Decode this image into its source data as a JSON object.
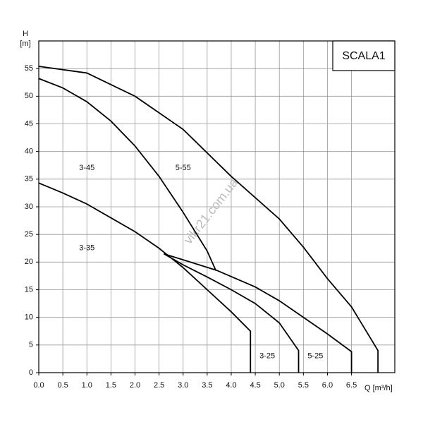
{
  "chart_data": {
    "type": "line",
    "title": "SCALA1",
    "y_label_top": "H",
    "y_label_unit": "[m]",
    "x_label": "Q [m³/h]",
    "watermark": "vikr21.com.ua",
    "xlim": [
      0,
      7.4
    ],
    "ylim": [
      0,
      60
    ],
    "xticks": [
      {
        "value": 0,
        "label": "0.0"
      },
      0.5,
      {
        "value": 1,
        "label": "1.0"
      },
      1.5,
      {
        "value": 2,
        "label": "2.0"
      },
      2.5,
      {
        "value": 3,
        "label": "3.0"
      },
      3.5,
      {
        "value": 4,
        "label": "4.0"
      },
      4.5,
      {
        "value": 5,
        "label": "5.0"
      },
      5.5,
      {
        "value": 6,
        "label": "6.0"
      },
      6.5
    ],
    "yticks": [
      0,
      5,
      10,
      15,
      20,
      25,
      30,
      35,
      40,
      45,
      50,
      55
    ],
    "grid": true,
    "series": [
      {
        "name": "5-55",
        "color": "#000000",
        "x": [
          0,
          1,
          2,
          3,
          4,
          5,
          5.5,
          6,
          6.5,
          7.05,
          7.05
        ],
        "values": [
          55.4,
          54.2,
          50,
          44,
          35.5,
          27.8,
          22.7,
          17,
          11.9,
          4,
          0
        ]
      },
      {
        "name": "3-45",
        "color": "#000000",
        "x": [
          0,
          0.5,
          1,
          1.5,
          2,
          2.5,
          3,
          3.5,
          3.68
        ],
        "values": [
          53.2,
          51.5,
          49,
          45.5,
          41,
          35.5,
          29,
          22,
          18.5
        ]
      },
      {
        "name": "3-35",
        "color": "#000000",
        "x": [
          0,
          0.5,
          1,
          1.5,
          2,
          2.5,
          3,
          3.5,
          4,
          4.4,
          4.4
        ],
        "values": [
          34.3,
          32.5,
          30.5,
          28,
          25.5,
          22.5,
          19,
          15,
          11,
          7.5,
          0
        ]
      },
      {
        "name": "3-25",
        "color": "#000000",
        "x": [
          2.6,
          3,
          3.5,
          4,
          4.5,
          5,
          5.4,
          5.4
        ],
        "values": [
          21.5,
          19.5,
          17.3,
          15,
          12.5,
          9,
          4,
          0
        ]
      },
      {
        "name": "5-25",
        "color": "#000000",
        "x": [
          2.6,
          3.7,
          4.5,
          5,
          5.5,
          6,
          6.5,
          6.5
        ],
        "values": [
          21.5,
          18.5,
          15.5,
          13,
          10,
          7,
          3.8,
          0
        ]
      }
    ]
  }
}
